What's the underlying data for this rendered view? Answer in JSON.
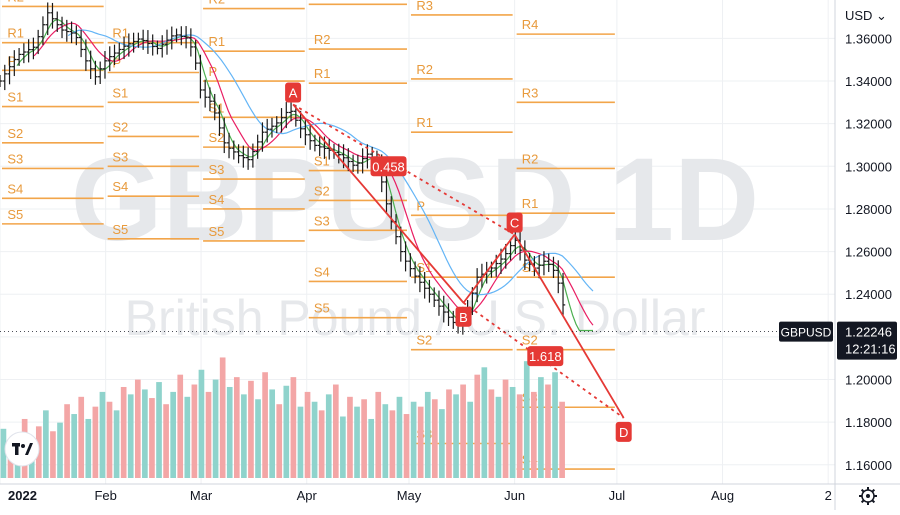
{
  "chart_data": {
    "type": "candlestick",
    "symbol": "GBPUSD",
    "interval": "1D",
    "description": "British Pound / U.S. Dollar",
    "currency_button": "USD",
    "last_price": "1.22246",
    "countdown": "12:21:16",
    "y_ticks": [
      "1.36000",
      "1.34000",
      "1.32000",
      "1.30000",
      "1.28000",
      "1.26000",
      "1.24000",
      "1.22000",
      "1.20000",
      "1.18000",
      "1.16000"
    ],
    "ylim": [
      1.151,
      1.378
    ],
    "x_ticks": [
      {
        "label": "2022",
        "day": 0
      },
      {
        "label": "Feb",
        "day": 31
      },
      {
        "label": "Mar",
        "day": 59
      },
      {
        "label": "Apr",
        "day": 90
      },
      {
        "label": "May",
        "day": 120
      },
      {
        "label": "Jun",
        "day": 151
      },
      {
        "label": "Jul",
        "day": 181
      },
      {
        "label": "Aug",
        "day": 212
      },
      {
        "label": "2",
        "day": 243
      }
    ],
    "xlim": [
      0,
      245
    ],
    "price_path": [
      {
        "day": 0,
        "price": 1.34
      },
      {
        "day": 5,
        "price": 1.352
      },
      {
        "day": 10,
        "price": 1.356
      },
      {
        "day": 14,
        "price": 1.372
      },
      {
        "day": 18,
        "price": 1.364
      },
      {
        "day": 22,
        "price": 1.362
      },
      {
        "day": 25,
        "price": 1.35
      },
      {
        "day": 28,
        "price": 1.342
      },
      {
        "day": 31,
        "price": 1.35
      },
      {
        "day": 36,
        "price": 1.356
      },
      {
        "day": 41,
        "price": 1.36
      },
      {
        "day": 46,
        "price": 1.355
      },
      {
        "day": 51,
        "price": 1.362
      },
      {
        "day": 55,
        "price": 1.36
      },
      {
        "day": 57,
        "price": 1.352
      },
      {
        "day": 59,
        "price": 1.334
      },
      {
        "day": 62,
        "price": 1.33
      },
      {
        "day": 66,
        "price": 1.31
      },
      {
        "day": 70,
        "price": 1.305
      },
      {
        "day": 73,
        "price": 1.303
      },
      {
        "day": 77,
        "price": 1.316
      },
      {
        "day": 81,
        "price": 1.32
      },
      {
        "day": 85,
        "price": 1.327
      },
      {
        "day": 88,
        "price": 1.318
      },
      {
        "day": 92,
        "price": 1.31
      },
      {
        "day": 96,
        "price": 1.308
      },
      {
        "day": 100,
        "price": 1.305
      },
      {
        "day": 104,
        "price": 1.3
      },
      {
        "day": 108,
        "price": 1.306
      },
      {
        "day": 111,
        "price": 1.3
      },
      {
        "day": 114,
        "price": 1.278
      },
      {
        "day": 118,
        "price": 1.258
      },
      {
        "day": 122,
        "price": 1.248
      },
      {
        "day": 126,
        "price": 1.24
      },
      {
        "day": 130,
        "price": 1.232
      },
      {
        "day": 134,
        "price": 1.225
      },
      {
        "day": 137,
        "price": 1.232
      },
      {
        "day": 140,
        "price": 1.248
      },
      {
        "day": 144,
        "price": 1.252
      },
      {
        "day": 148,
        "price": 1.258
      },
      {
        "day": 151,
        "price": 1.266
      },
      {
        "day": 154,
        "price": 1.256
      },
      {
        "day": 157,
        "price": 1.252
      },
      {
        "day": 160,
        "price": 1.256
      },
      {
        "day": 163,
        "price": 1.25
      },
      {
        "day": 165,
        "price": 1.238
      },
      {
        "day": 166,
        "price": 1.223
      }
    ],
    "pivot_levels": [
      {
        "x0": 0,
        "x1": 31,
        "levels": [
          {
            "label": "R2",
            "price": 1.375
          },
          {
            "label": "R1",
            "price": 1.358
          },
          {
            "label": "P",
            "price": 1.345
          },
          {
            "label": "S1",
            "price": 1.328
          },
          {
            "label": "S2",
            "price": 1.311
          },
          {
            "label": "S3",
            "price": 1.299
          },
          {
            "label": "S4",
            "price": 1.285
          },
          {
            "label": "S5",
            "price": 1.273
          }
        ]
      },
      {
        "x0": 31,
        "x1": 59,
        "levels": [
          {
            "label": "R1",
            "price": 1.358
          },
          {
            "label": "P",
            "price": 1.344
          },
          {
            "label": "S1",
            "price": 1.33
          },
          {
            "label": "S2",
            "price": 1.314
          },
          {
            "label": "S3",
            "price": 1.3
          },
          {
            "label": "S4",
            "price": 1.286
          },
          {
            "label": "S5",
            "price": 1.266
          }
        ]
      },
      {
        "x0": 59,
        "x1": 90,
        "levels": [
          {
            "label": "R2",
            "price": 1.374
          },
          {
            "label": "R1",
            "price": 1.354
          },
          {
            "label": "P",
            "price": 1.34
          },
          {
            "label": "S1",
            "price": 1.323
          },
          {
            "label": "S2",
            "price": 1.309
          },
          {
            "label": "S3",
            "price": 1.294
          },
          {
            "label": "S4",
            "price": 1.28
          },
          {
            "label": "S5",
            "price": 1.265
          }
        ]
      },
      {
        "x0": 90,
        "x1": 120,
        "levels": [
          {
            "label": "R3",
            "price": 1.376
          },
          {
            "label": "R2",
            "price": 1.355
          },
          {
            "label": "R1",
            "price": 1.339
          },
          {
            "label": "S1",
            "price": 1.298
          },
          {
            "label": "S2",
            "price": 1.284
          },
          {
            "label": "S3",
            "price": 1.27
          },
          {
            "label": "S4",
            "price": 1.246
          },
          {
            "label": "S5",
            "price": 1.229
          }
        ]
      },
      {
        "x0": 120,
        "x1": 151,
        "levels": [
          {
            "label": "R3",
            "price": 1.371
          },
          {
            "label": "R2",
            "price": 1.341
          },
          {
            "label": "R1",
            "price": 1.316
          },
          {
            "label": "P",
            "price": 1.277
          },
          {
            "label": "S1",
            "price": 1.248
          },
          {
            "label": "S2",
            "price": 1.214
          },
          {
            "label": "S3",
            "price": 1.17
          }
        ]
      },
      {
        "x0": 151,
        "x1": 181,
        "levels": [
          {
            "label": "R4",
            "price": 1.362
          },
          {
            "label": "R3",
            "price": 1.33
          },
          {
            "label": "R2",
            "price": 1.299
          },
          {
            "label": "R1",
            "price": 1.278
          },
          {
            "label": "S1",
            "price": 1.248
          },
          {
            "label": "S2",
            "price": 1.214
          },
          {
            "label": "S3",
            "price": 1.187
          },
          {
            "label": "S4",
            "price": 1.158
          }
        ]
      }
    ],
    "pattern": {
      "points": [
        {
          "label": "A",
          "day": 86,
          "price": 1.329
        },
        {
          "label": "B",
          "day": 136,
          "price": 1.236
        },
        {
          "label": "C",
          "day": 151,
          "price": 1.268
        },
        {
          "label": "D",
          "day": 183,
          "price": 1.182
        }
      ],
      "ratios": [
        {
          "label": "0.458",
          "day": 114,
          "price": 1.3
        },
        {
          "label": "1.618",
          "day": 160,
          "price": 1.211
        }
      ]
    },
    "volume_max": 100,
    "volume": [
      {
        "v": 40,
        "up": true
      },
      {
        "v": 22,
        "up": false
      },
      {
        "v": 35,
        "up": true
      },
      {
        "v": 48,
        "up": false
      },
      {
        "v": 30,
        "up": true
      },
      {
        "v": 42,
        "up": false
      },
      {
        "v": 55,
        "up": true
      },
      {
        "v": 38,
        "up": false
      },
      {
        "v": 45,
        "up": true
      },
      {
        "v": 60,
        "up": false
      },
      {
        "v": 52,
        "up": true
      },
      {
        "v": 66,
        "up": false
      },
      {
        "v": 48,
        "up": true
      },
      {
        "v": 58,
        "up": false
      },
      {
        "v": 70,
        "up": true
      },
      {
        "v": 62,
        "up": false
      },
      {
        "v": 55,
        "up": true
      },
      {
        "v": 74,
        "up": false
      },
      {
        "v": 68,
        "up": true
      },
      {
        "v": 80,
        "up": false
      },
      {
        "v": 72,
        "up": true
      },
      {
        "v": 65,
        "up": false
      },
      {
        "v": 78,
        "up": true
      },
      {
        "v": 60,
        "up": false
      },
      {
        "v": 70,
        "up": true
      },
      {
        "v": 84,
        "up": false
      },
      {
        "v": 66,
        "up": true
      },
      {
        "v": 76,
        "up": false
      },
      {
        "v": 88,
        "up": true
      },
      {
        "v": 70,
        "up": false
      },
      {
        "v": 80,
        "up": true
      },
      {
        "v": 98,
        "up": false
      },
      {
        "v": 74,
        "up": true
      },
      {
        "v": 82,
        "up": false
      },
      {
        "v": 68,
        "up": true
      },
      {
        "v": 79,
        "up": false
      },
      {
        "v": 64,
        "up": true
      },
      {
        "v": 86,
        "up": false
      },
      {
        "v": 72,
        "up": true
      },
      {
        "v": 60,
        "up": false
      },
      {
        "v": 75,
        "up": true
      },
      {
        "v": 82,
        "up": false
      },
      {
        "v": 58,
        "up": true
      },
      {
        "v": 70,
        "up": false
      },
      {
        "v": 62,
        "up": true
      },
      {
        "v": 55,
        "up": false
      },
      {
        "v": 68,
        "up": true
      },
      {
        "v": 76,
        "up": false
      },
      {
        "v": 50,
        "up": true
      },
      {
        "v": 66,
        "up": false
      },
      {
        "v": 58,
        "up": true
      },
      {
        "v": 64,
        "up": false
      },
      {
        "v": 48,
        "up": true
      },
      {
        "v": 70,
        "up": false
      },
      {
        "v": 60,
        "up": true
      },
      {
        "v": 55,
        "up": false
      },
      {
        "v": 66,
        "up": true
      },
      {
        "v": 52,
        "up": false
      },
      {
        "v": 62,
        "up": true
      },
      {
        "v": 58,
        "up": false
      },
      {
        "v": 70,
        "up": true
      },
      {
        "v": 64,
        "up": false
      },
      {
        "v": 56,
        "up": true
      },
      {
        "v": 72,
        "up": false
      },
      {
        "v": 68,
        "up": true
      },
      {
        "v": 76,
        "up": false
      },
      {
        "v": 62,
        "up": true
      },
      {
        "v": 84,
        "up": false
      },
      {
        "v": 90,
        "up": true
      },
      {
        "v": 72,
        "up": false
      },
      {
        "v": 66,
        "up": true
      },
      {
        "v": 80,
        "up": false
      },
      {
        "v": 74,
        "up": true
      },
      {
        "v": 68,
        "up": false
      },
      {
        "v": 95,
        "up": true
      },
      {
        "v": 70,
        "up": false
      },
      {
        "v": 82,
        "up": true
      },
      {
        "v": 76,
        "up": false
      },
      {
        "v": 86,
        "up": true
      },
      {
        "v": 62,
        "up": false
      }
    ]
  }
}
